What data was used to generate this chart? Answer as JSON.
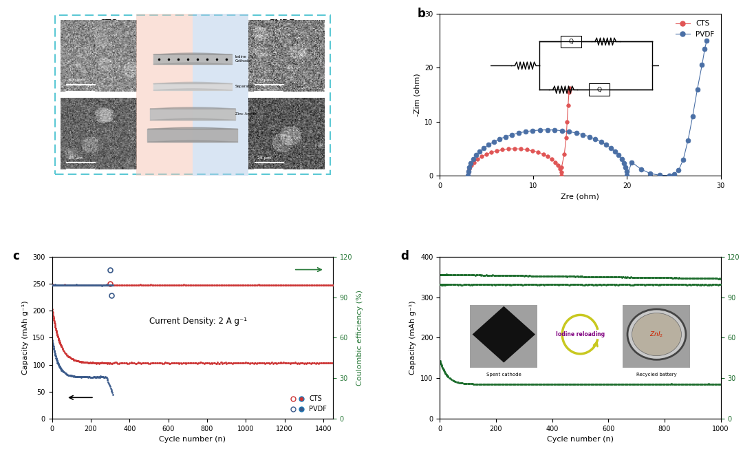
{
  "panel_b": {
    "cts_color": "#e05555",
    "pvdf_color": "#4a6fa5",
    "xlim": [
      0,
      30
    ],
    "ylim": [
      0,
      30
    ],
    "xlabel": "Zre (ohm)",
    "ylabel": "-Zim (ohm)",
    "xticks": [
      0,
      10,
      20,
      30
    ],
    "yticks": [
      0,
      10,
      20,
      30
    ]
  },
  "panel_c": {
    "cts_cap_color": "#cc3333",
    "pvdf_cap_color": "#3a5a8a",
    "ce_color": "#2a7a3a",
    "xlim": [
      0,
      1450
    ],
    "ylim_left": [
      0,
      300
    ],
    "ylim_right": [
      0,
      120
    ],
    "xlabel": "Cycle number (n)",
    "ylabel_left": "Capacity (mAh g⁻¹)",
    "ylabel_right": "Coulombic efficiency (%)",
    "xticks": [
      0,
      200,
      400,
      600,
      800,
      1000,
      1200,
      1400
    ],
    "yticks_left": [
      0,
      50,
      100,
      150,
      200,
      250,
      300
    ],
    "yticks_right": [
      0,
      30,
      60,
      90,
      120
    ],
    "annotation": "Current Density: 2 A g⁻¹"
  },
  "panel_d": {
    "cap_color": "#1a6b2a",
    "ce_color": "#1a6b2a",
    "xlim": [
      0,
      1000
    ],
    "ylim_left": [
      0,
      400
    ],
    "ylim_right": [
      0,
      120
    ],
    "xlabel": "Cycle number (n)",
    "ylabel_left": "Capacity (mAh g⁻¹)",
    "ylabel_right": "Coulombic efficiency (%)",
    "xticks": [
      0,
      200,
      400,
      600,
      800,
      1000
    ],
    "yticks_left": [
      0,
      100,
      200,
      300,
      400
    ],
    "yticks_right": [
      0,
      30,
      60,
      90,
      120
    ]
  },
  "colors": {
    "dashed_box": "#5bc8d4",
    "background": "#ffffff"
  }
}
